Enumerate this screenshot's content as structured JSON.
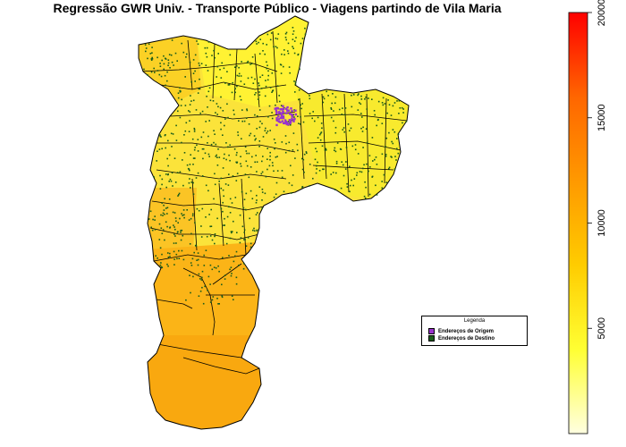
{
  "title": "Regressão GWR Univ. - Transporte Público - Viagens partindo de Vila Maria",
  "legend": {
    "title": "Legenda",
    "items": [
      {
        "label": "Endereços de Origem",
        "color": "#9933cc"
      },
      {
        "label": "Endereços de Destino",
        "color": "#1a5c1a"
      }
    ]
  },
  "colorbar": {
    "min": 0,
    "max": 20000,
    "ticks": [
      {
        "value": 5000,
        "label": "5000"
      },
      {
        "value": 10000,
        "label": "10000"
      },
      {
        "value": 15000,
        "label": "15000"
      },
      {
        "value": 20000,
        "label": "20000"
      }
    ],
    "colors": [
      "#ffffe0",
      "#ffff33",
      "#ffcc00",
      "#ff9900",
      "#ff6600",
      "#ff0000"
    ]
  },
  "map_colors": {
    "north": "#fff033",
    "center": "#f5e62a",
    "east": "#f7e52b",
    "south_upper": "#fbb417",
    "south_lower": "#f9a80f",
    "origin": "#9933cc",
    "destination": "#1a5c1a"
  }
}
